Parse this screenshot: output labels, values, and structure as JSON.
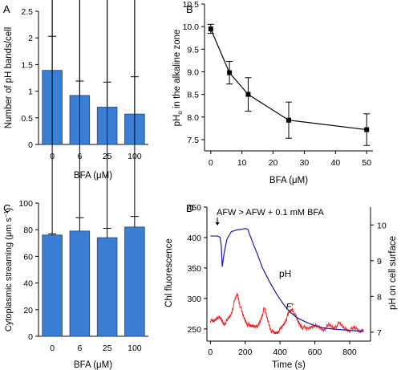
{
  "colors": {
    "bar_fill": "#3b7fd4",
    "bar_stroke": "#1c3f73",
    "ph_trace": "#1a1aa6",
    "fluor_trace": "#e8231f",
    "axis": "#000000"
  },
  "chart_data": [
    {
      "panel": "A",
      "type": "bar",
      "xlabel": "BFA (μM)",
      "ylabel": "Number of pH bands/cell",
      "categories": [
        "0",
        "6",
        "25",
        "100"
      ],
      "values": [
        1.39,
        0.92,
        0.7,
        0.57
      ],
      "errors": [
        0.64,
        0.27,
        0.47,
        0.7
      ],
      "ylim": [
        0,
        2.5
      ],
      "yticks": [
        "0",
        "0.5",
        "1",
        "1.5",
        "2",
        "2.5"
      ]
    },
    {
      "panel": "B",
      "type": "line",
      "xlabel": "BFA (μM)",
      "ylabel_main": "pH",
      "ylabel_sub": "o",
      "ylabel_rest": " in the alkaline zone",
      "x": [
        0,
        6,
        12,
        25,
        50
      ],
      "y": [
        9.95,
        8.98,
        8.5,
        7.93,
        7.72
      ],
      "errors": [
        0.1,
        0.25,
        0.37,
        0.4,
        0.35
      ],
      "xlim": [
        -2,
        52
      ],
      "ylim": [
        7.25,
        10.5
      ],
      "xticks": [
        "0",
        "10",
        "20",
        "30",
        "40",
        "50"
      ],
      "yticks": [
        "7.5",
        "8.0",
        "8.5",
        "9.0",
        "9.5",
        "10.0",
        "10.5"
      ]
    },
    {
      "panel": "C",
      "type": "bar",
      "xlabel": "BFA (μM)",
      "ylabel_main": "Cytoplasmic streaming (μm s",
      "ylabel_sup": "−1",
      "ylabel_end": ")",
      "categories": [
        "0",
        "6",
        "25",
        "100"
      ],
      "values": [
        76,
        79,
        74,
        82
      ],
      "errors": [
        0.8,
        10,
        7,
        8
      ],
      "ylim": [
        0,
        100
      ],
      "yticks": [
        "0",
        "20",
        "40",
        "60",
        "80",
        "100"
      ]
    },
    {
      "panel": "D",
      "type": "line",
      "annotation": "AFW > AFW + 0.1 mM BFA",
      "xlabel": "Time (s)",
      "ylabel_left": "Chl fluorescence",
      "ylabel_right": "pH on cell surface",
      "xlim": [
        -20,
        920
      ],
      "ylim_left": [
        230,
        450
      ],
      "ylim_right": [
        6.75,
        10.5
      ],
      "xticks": [
        "0",
        "200",
        "400",
        "600",
        "800"
      ],
      "yticks_left": [
        "250",
        "300",
        "350",
        "400",
        "450"
      ],
      "yticks_right": [
        "7",
        "8",
        "9",
        "10"
      ],
      "series": [
        {
          "name": "pH",
          "axis": "right",
          "x": [
            0,
            40,
            55,
            62,
            68,
            78,
            95,
            120,
            150,
            180,
            200,
            215,
            225,
            240,
            270,
            300,
            340,
            380,
            420,
            460,
            500,
            550,
            600,
            650,
            700,
            750,
            800,
            850,
            880
          ],
          "y": [
            9.69,
            9.69,
            9.66,
            9.45,
            8.83,
            9.18,
            9.6,
            9.81,
            9.86,
            9.88,
            9.9,
            9.88,
            9.74,
            9.55,
            9.18,
            8.79,
            8.41,
            8.07,
            7.78,
            7.55,
            7.4,
            7.28,
            7.18,
            7.12,
            7.09,
            7.07,
            7.05,
            7.03,
            7.02
          ]
        },
        {
          "name": "F′",
          "axis": "left",
          "x": [
            0,
            20,
            40,
            60,
            80,
            100,
            120,
            140,
            155,
            170,
            190,
            210,
            230,
            250,
            270,
            290,
            310,
            330,
            350,
            370,
            390,
            410,
            430,
            450,
            470,
            490,
            510,
            530,
            560,
            590,
            620,
            650,
            680,
            710,
            740,
            770,
            800,
            830,
            860,
            880
          ],
          "y": [
            264,
            262,
            270,
            266,
            258,
            265,
            275,
            296,
            308,
            289,
            270,
            259,
            254,
            256,
            252,
            266,
            284,
            264,
            247,
            243,
            246,
            252,
            262,
            276,
            283,
            270,
            259,
            253,
            250,
            256,
            253,
            249,
            256,
            252,
            259,
            251,
            248,
            252,
            247,
            246
          ]
        }
      ],
      "labels": {
        "ph": "pH",
        "fluor": "F′"
      }
    }
  ],
  "panel_letters": [
    "A",
    "B",
    "C",
    "D"
  ]
}
